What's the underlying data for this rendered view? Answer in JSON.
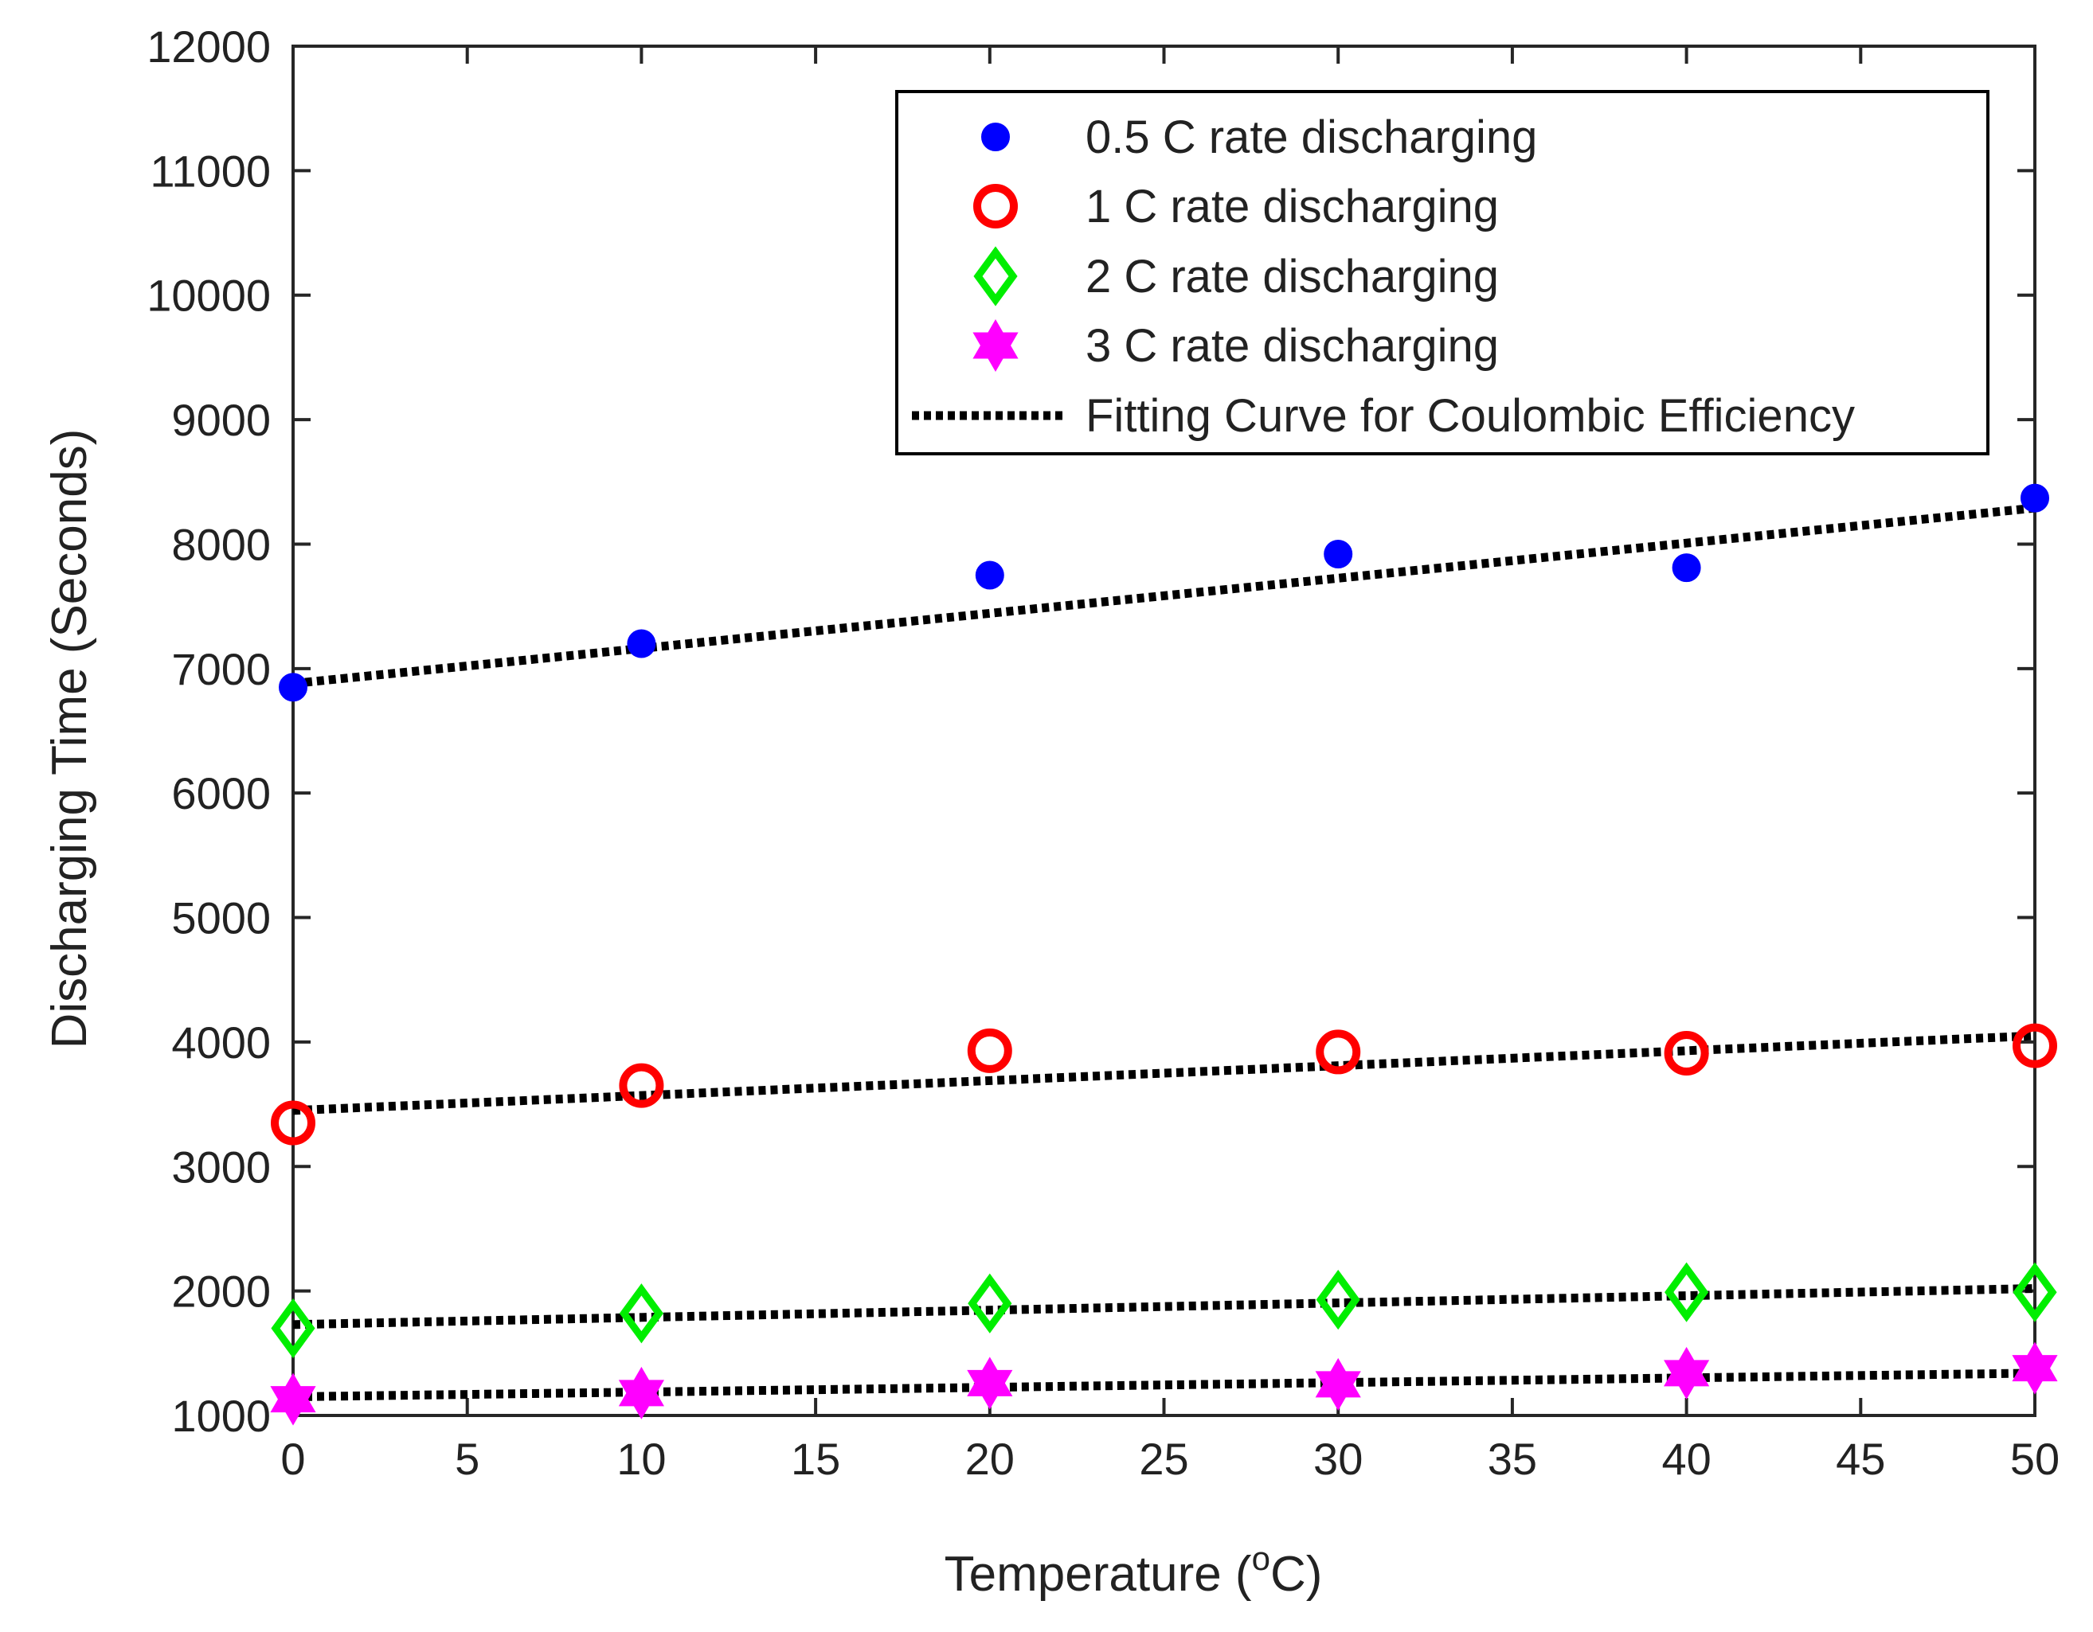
{
  "chart_data": {
    "type": "scatter",
    "title": "",
    "xlabel": "Temperature (",
    "xlabel_sup": "o",
    "xlabel_suffix": "C)",
    "ylabel": "Discharging Time (Seconds)",
    "xlim": [
      0,
      50
    ],
    "ylim": [
      1000,
      12000
    ],
    "xticks": [
      0,
      5,
      10,
      15,
      20,
      25,
      30,
      35,
      40,
      45,
      50
    ],
    "yticks": [
      1000,
      2000,
      3000,
      4000,
      5000,
      6000,
      7000,
      8000,
      9000,
      10000,
      11000,
      12000
    ],
    "grid": false,
    "legend_position": "top-right",
    "x": [
      0,
      10,
      20,
      30,
      40,
      50
    ],
    "series": [
      {
        "name": "0.5 C rate discharging",
        "marker": "filled-circle",
        "color": "#0000ff",
        "values": [
          6850,
          7200,
          7750,
          7920,
          7810,
          8370
        ],
        "fit": [
          6880,
          8290
        ]
      },
      {
        "name": "1 C rate discharging",
        "marker": "open-circle",
        "color": "#ff0000",
        "values": [
          3350,
          3650,
          3930,
          3920,
          3910,
          3970
        ],
        "fit": [
          3450,
          4050
        ]
      },
      {
        "name": "2 C rate discharging",
        "marker": "open-diamond",
        "color": "#00ee00",
        "values": [
          1700,
          1820,
          1900,
          1930,
          1990,
          1990
        ],
        "fit": [
          1730,
          2020
        ]
      },
      {
        "name": "3 C rate discharging",
        "marker": "hexagram",
        "color": "#ff00ff",
        "values": [
          1130,
          1180,
          1260,
          1250,
          1340,
          1380
        ],
        "fit": [
          1150,
          1340
        ]
      }
    ],
    "fit_legend": "Fitting Curve for Coulombic Efficiency",
    "fit_color": "#000000"
  }
}
